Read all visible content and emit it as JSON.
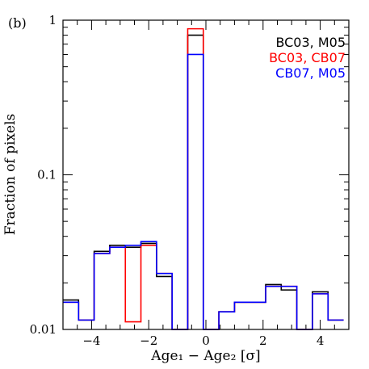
{
  "chart_data": {
    "type": "step",
    "panel_label": "(b)",
    "xlabel": "Age₁ − Age₂ [σ]",
    "ylabel": "Fraction of pixels",
    "xlim": [
      -5,
      5
    ],
    "ylim": [
      0.01,
      1
    ],
    "yscale": "log",
    "x_ticks": [
      -4,
      -2,
      0,
      2,
      4
    ],
    "x_tick_labels": [
      "−4",
      "−2",
      "0",
      "2",
      "4"
    ],
    "y_ticks": [
      0.01,
      0.1,
      1
    ],
    "y_tick_labels": [
      "0.01",
      "0.1",
      "1"
    ],
    "legend_position": "top-right",
    "bin_edges": [
      -5.0,
      -4.455,
      -3.909,
      -3.364,
      -2.818,
      -2.273,
      -1.727,
      -1.182,
      -0.636,
      -0.091,
      0.455,
      1.0,
      1.545,
      2.091,
      2.636,
      3.182,
      3.727,
      4.273,
      4.818
    ],
    "series": [
      {
        "name": "BC03, M05",
        "color": "#000000",
        "values": [
          0.0155,
          0.0115,
          0.032,
          0.035,
          0.034,
          0.036,
          0.022,
          0.01,
          0.8,
          0.01,
          0.013,
          0.015,
          0.015,
          0.0195,
          0.018,
          0.01,
          0.0175,
          0.0115
        ]
      },
      {
        "name": "BC03, CB07",
        "color": "#ff0000",
        "values": [
          0.015,
          0.0115,
          0.031,
          0.034,
          0.0112,
          0.035,
          0.023,
          0.01,
          0.88,
          0.01,
          0.013,
          0.015,
          0.015,
          0.019,
          0.019,
          0.01,
          0.017,
          0.0115
        ]
      },
      {
        "name": "CB07, M05",
        "color": "#0000ff",
        "values": [
          0.015,
          0.0115,
          0.031,
          0.034,
          0.035,
          0.037,
          0.023,
          0.01,
          0.6,
          0.01,
          0.013,
          0.015,
          0.015,
          0.019,
          0.019,
          0.01,
          0.017,
          0.0115
        ]
      }
    ]
  }
}
